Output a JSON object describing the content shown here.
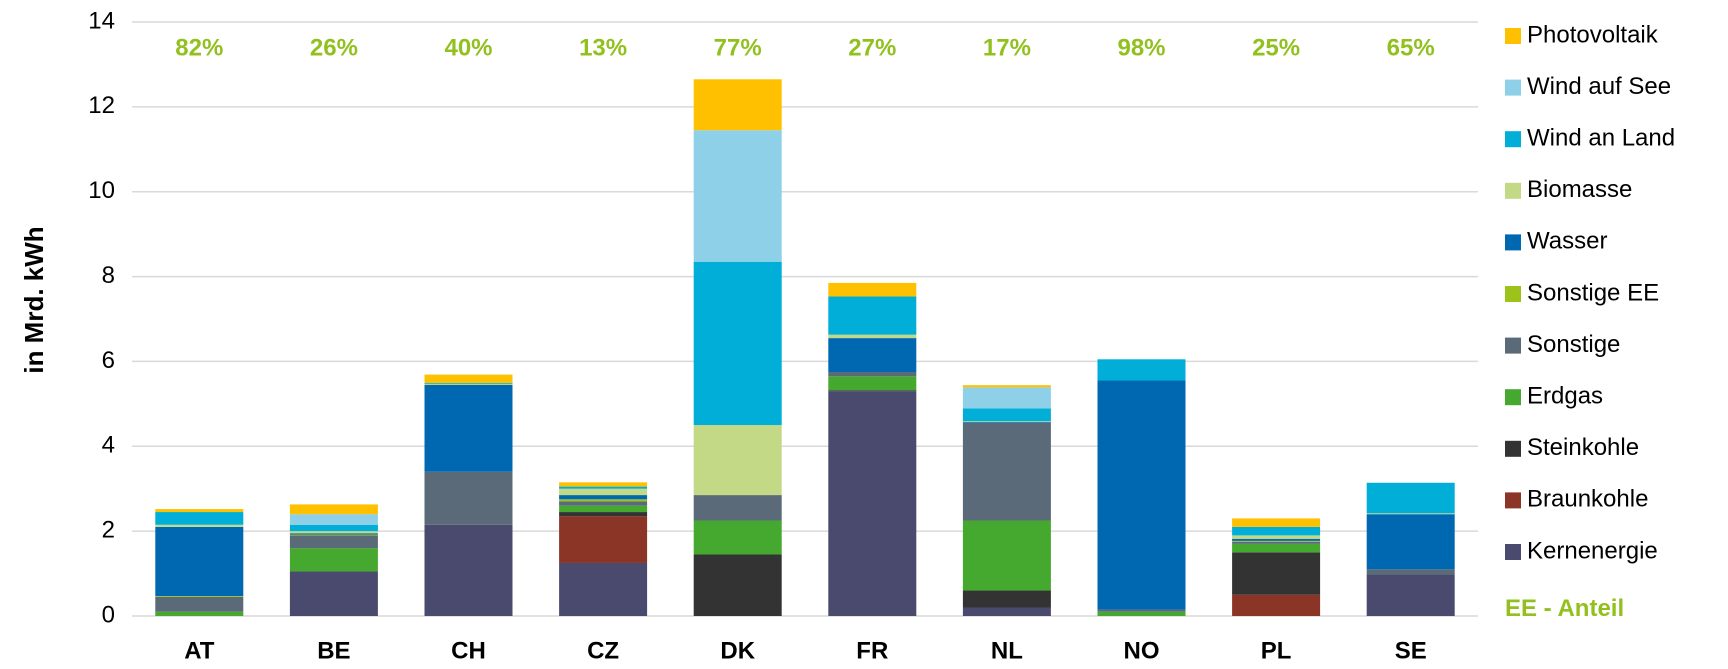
{
  "chart_data": {
    "type": "stacked_bar",
    "y_label": "in Mrd. kWh",
    "categories": [
      "AT",
      "BE",
      "CH",
      "CZ",
      "DK",
      "FR",
      "NL",
      "NO",
      "PL",
      "SE"
    ],
    "ylim": [
      0,
      14
    ],
    "yticks": [
      0,
      2,
      4,
      6,
      8,
      10,
      12,
      14
    ],
    "grid": true,
    "series": [
      {
        "name": "Kernenergie",
        "color": "#4a4a6e",
        "values": [
          0,
          1.05,
          2.15,
          1.25,
          0,
          5.3,
          0.2,
          0,
          0,
          0.98
        ]
      },
      {
        "name": "Braunkohle",
        "color": "#8b3526",
        "values": [
          0,
          0,
          0,
          1.1,
          0,
          0,
          0,
          0,
          0.5,
          0
        ]
      },
      {
        "name": "Steinkohle",
        "color": "#333333",
        "values": [
          0,
          0,
          0,
          0.1,
          1.45,
          0.02,
          0.4,
          0,
          1.0,
          0
        ]
      },
      {
        "name": "Erdgas",
        "color": "#45a82f",
        "values": [
          0.1,
          0.55,
          0,
          0.15,
          0.8,
          0.33,
          1.65,
          0.1,
          0.2,
          0
        ]
      },
      {
        "name": "Sonstige",
        "color": "#5a6a78",
        "values": [
          0.35,
          0.3,
          1.25,
          0.1,
          0.6,
          0.1,
          2.3,
          0.05,
          0.05,
          0.12
        ]
      },
      {
        "name": "Sonstige EE",
        "color": "#9dc31a",
        "values": [
          0.02,
          0.02,
          0,
          0.05,
          0,
          0,
          0,
          0,
          0.02,
          0
        ]
      },
      {
        "name": "Wasser",
        "color": "#0068b0",
        "values": [
          1.63,
          0.03,
          2.05,
          0.1,
          0,
          0.8,
          0.02,
          5.4,
          0.05,
          1.3
        ]
      },
      {
        "name": "Biomasse",
        "color": "#c3d985",
        "values": [
          0.05,
          0.05,
          0.02,
          0.15,
          1.65,
          0.08,
          0.02,
          0,
          0.08,
          0.02
        ]
      },
      {
        "name": "Wind an Land",
        "color": "#00aed8",
        "values": [
          0.3,
          0.15,
          0.02,
          0.05,
          3.85,
          0.9,
          0.3,
          0.5,
          0.2,
          0.72
        ]
      },
      {
        "name": "Wind auf See",
        "color": "#8dd0e8",
        "values": [
          0,
          0.25,
          0,
          0,
          3.1,
          0,
          0.5,
          0,
          0,
          0
        ]
      },
      {
        "name": "Photovoltaik",
        "color": "#ffc000",
        "values": [
          0.07,
          0.23,
          0.2,
          0.1,
          1.2,
          0.32,
          0.05,
          0,
          0.2,
          0
        ]
      }
    ],
    "ee_share": {
      "name": "EE - Anteil",
      "color": "#92c01f",
      "values": [
        82,
        26,
        40,
        13,
        77,
        27,
        17,
        98,
        25,
        65
      ],
      "value_labels": [
        "82%",
        "26%",
        "40%",
        "13%",
        "77%",
        "27%",
        "17%",
        "98%",
        "25%",
        "65%"
      ]
    }
  }
}
